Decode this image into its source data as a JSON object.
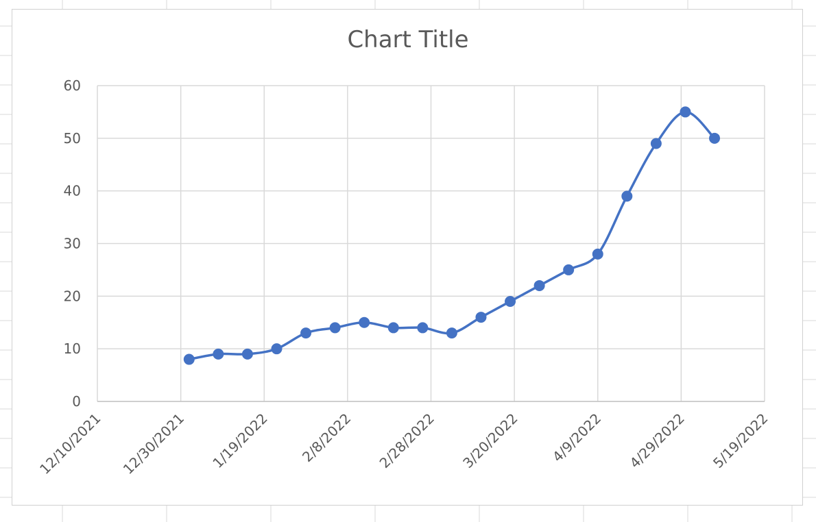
{
  "chart_data": {
    "type": "line",
    "title": "Chart Title",
    "xlabel": "",
    "ylabel": "",
    "x_axis": {
      "kind": "date",
      "min": "12/10/2021",
      "max": "5/19/2022",
      "tick_labels": [
        "12/10/2021",
        "12/30/2021",
        "1/19/2022",
        "2/8/2022",
        "2/28/2022",
        "3/20/2022",
        "4/9/2022",
        "4/29/2022",
        "5/19/2022"
      ]
    },
    "y_axis": {
      "min": 0,
      "max": 60,
      "tick_labels": [
        "0",
        "10",
        "20",
        "30",
        "40",
        "50",
        "60"
      ]
    },
    "grid": true,
    "smooth": true,
    "marker": "circle",
    "line_color": "#4472C4",
    "series": [
      {
        "x": [
          "1/1/2022",
          "1/8/2022",
          "1/15/2022",
          "1/22/2022",
          "1/29/2022",
          "2/5/2022",
          "2/12/2022",
          "2/19/2022",
          "2/26/2022",
          "3/5/2022",
          "3/12/2022",
          "3/19/2022",
          "3/26/2022",
          "4/2/2022",
          "4/9/2022",
          "4/16/2022",
          "4/23/2022",
          "4/30/2022",
          "5/7/2022"
        ],
        "values": [
          8,
          9,
          9,
          10,
          13,
          14,
          15,
          14,
          14,
          13,
          16,
          19,
          22,
          25,
          28,
          39,
          49,
          55,
          50
        ]
      }
    ]
  }
}
